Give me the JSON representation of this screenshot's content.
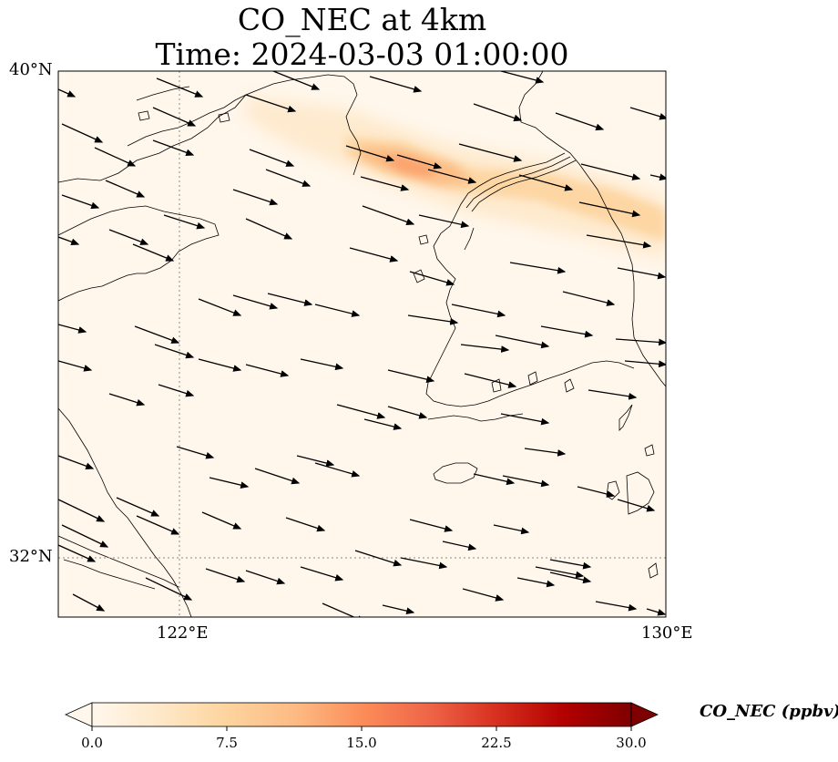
{
  "title": {
    "line1": "CO_NEC at 4km",
    "line2": "Time: 2024-03-03 01:00:00"
  },
  "map": {
    "extent": {
      "lon_min": 120,
      "lon_max": 130,
      "lat_min": 31,
      "lat_max": 40
    },
    "gridlines": {
      "longitudes": [
        122,
        130
      ],
      "latitudes": [
        40,
        32
      ],
      "lon_labels": [
        "122°E",
        "130°E"
      ],
      "lat_labels": [
        "40°N",
        "32°N"
      ]
    },
    "field": "CO_NEC",
    "plume_color_scale": "OrRd",
    "wind_arrows_direction": "westerly to west-northwesterly"
  },
  "colorbar": {
    "label": "CO_NEC (ppbv)",
    "ticks": [
      "0.0",
      "7.5",
      "15.0",
      "22.5",
      "30.0"
    ],
    "tick_values": [
      0,
      7.5,
      15,
      22.5,
      30
    ],
    "range": [
      0,
      30
    ],
    "extend": "both",
    "colors": [
      "#fff7ec",
      "#fee8c8",
      "#fdd49e",
      "#fdbb84",
      "#fc8d59",
      "#ef6548",
      "#d7301f",
      "#b30000",
      "#7f0000"
    ]
  }
}
